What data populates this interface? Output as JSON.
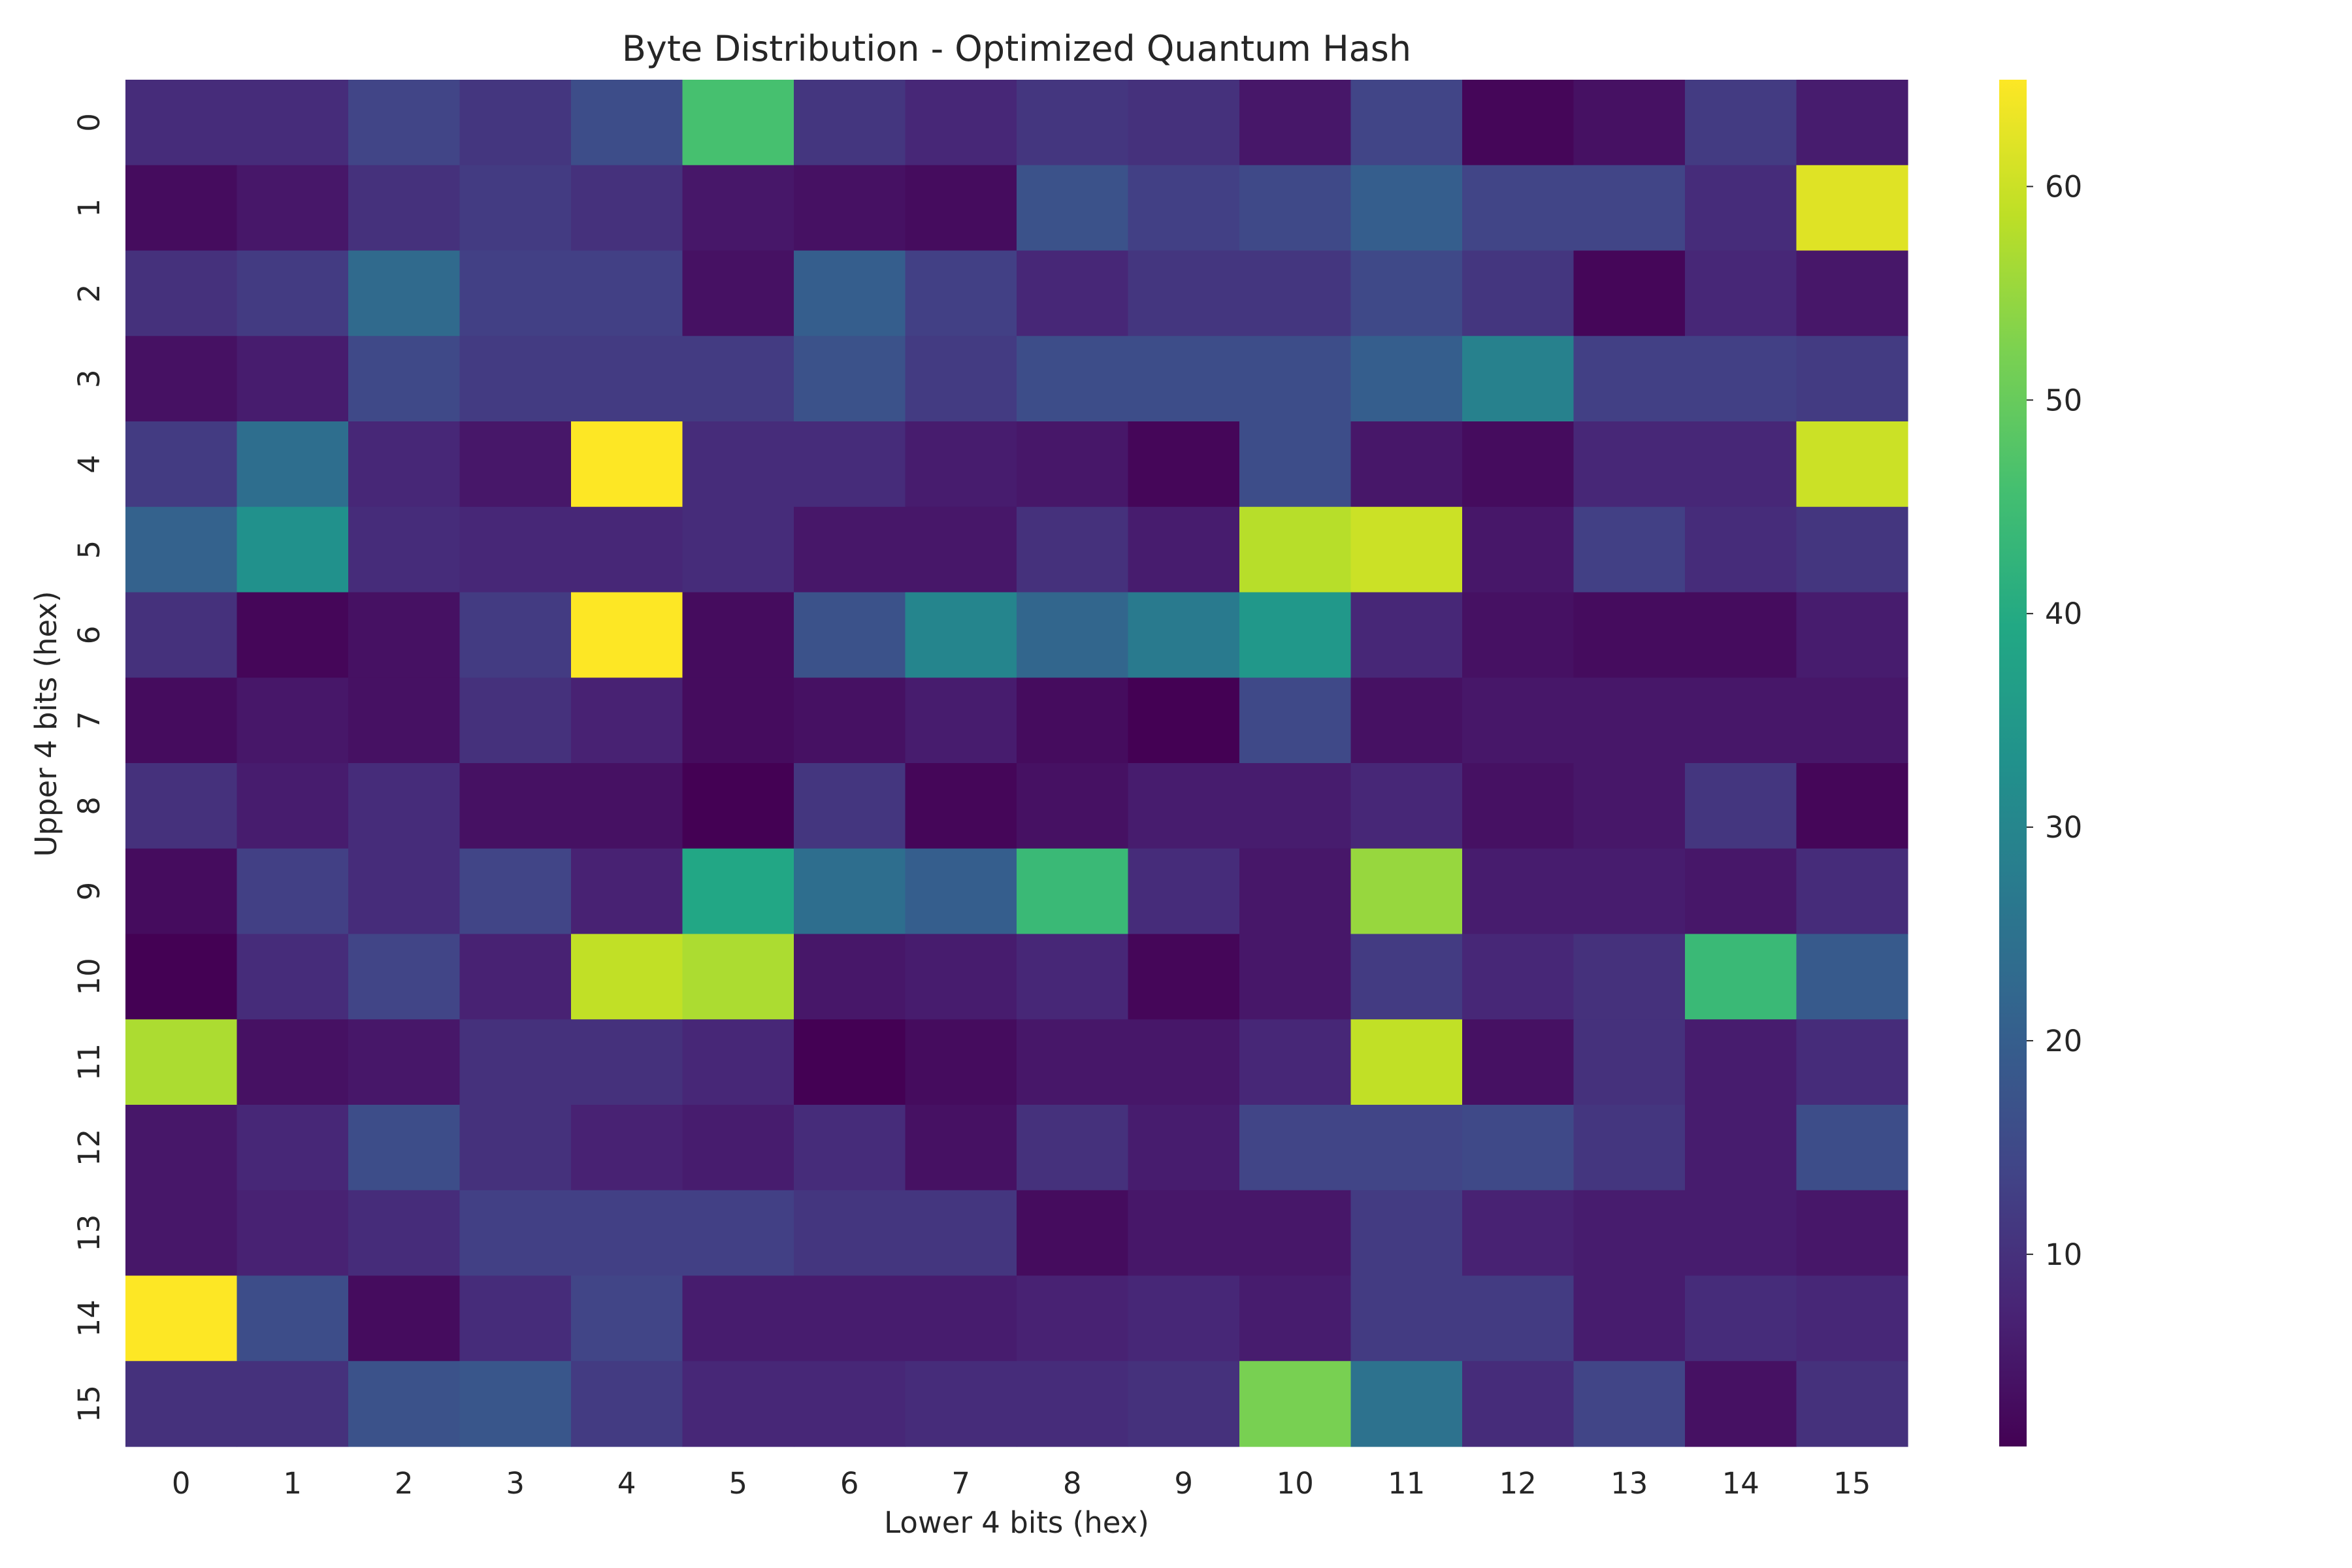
{
  "chart_data": {
    "type": "heatmap",
    "title": "Byte Distribution - Optimized Quantum Hash",
    "xlabel": "Lower 4 bits (hex)",
    "ylabel": "Upper 4 bits (hex)",
    "x_categories": [
      "0",
      "1",
      "2",
      "3",
      "4",
      "5",
      "6",
      "7",
      "8",
      "9",
      "10",
      "11",
      "12",
      "13",
      "14",
      "15"
    ],
    "y_categories": [
      "0",
      "1",
      "2",
      "3",
      "4",
      "5",
      "6",
      "7",
      "8",
      "9",
      "10",
      "11",
      "12",
      "13",
      "14",
      "15"
    ],
    "colormap": "viridis",
    "vmin": 1,
    "vmax": 65,
    "colorbar_ticks": [
      10,
      20,
      30,
      40,
      50,
      60
    ],
    "values": [
      [
        9,
        9,
        14,
        11,
        16,
        46,
        11,
        8,
        11,
        10,
        5,
        14,
        2,
        4,
        12,
        6
      ],
      [
        3,
        5,
        10,
        12,
        10,
        5,
        4,
        3,
        17,
        13,
        15,
        20,
        14,
        14,
        9,
        62
      ],
      [
        10,
        12,
        23,
        13,
        13,
        4,
        20,
        13,
        8,
        11,
        11,
        15,
        11,
        2,
        8,
        5
      ],
      [
        4,
        6,
        15,
        12,
        12,
        12,
        17,
        12,
        16,
        16,
        16,
        20,
        29,
        13,
        13,
        12
      ],
      [
        12,
        24,
        8,
        5,
        65,
        9,
        9,
        6,
        5,
        2,
        16,
        5,
        3,
        8,
        8,
        60
      ],
      [
        21,
        33,
        9,
        8,
        8,
        9,
        5,
        5,
        10,
        6,
        58,
        60,
        5,
        13,
        9,
        11
      ],
      [
        10,
        2,
        4,
        12,
        65,
        3,
        17,
        30,
        22,
        27,
        35,
        8,
        4,
        3,
        3,
        6
      ],
      [
        3,
        5,
        4,
        10,
        7,
        3,
        4,
        6,
        3,
        1,
        15,
        4,
        5,
        5,
        5,
        5
      ],
      [
        10,
        6,
        9,
        4,
        4,
        1,
        11,
        2,
        4,
        6,
        6,
        8,
        4,
        5,
        11,
        2
      ],
      [
        3,
        13,
        9,
        14,
        7,
        39,
        24,
        20,
        44,
        9,
        5,
        55,
        6,
        6,
        5,
        9
      ],
      [
        1,
        9,
        14,
        7,
        59,
        57,
        5,
        6,
        8,
        2,
        5,
        12,
        8,
        10,
        44,
        19
      ],
      [
        57,
        4,
        5,
        10,
        10,
        8,
        1,
        3,
        5,
        5,
        8,
        59,
        4,
        10,
        6,
        9
      ],
      [
        5,
        8,
        16,
        10,
        7,
        6,
        9,
        4,
        10,
        6,
        14,
        14,
        15,
        11,
        6,
        16
      ],
      [
        5,
        7,
        9,
        13,
        13,
        13,
        11,
        11,
        3,
        5,
        5,
        12,
        7,
        6,
        6,
        5
      ],
      [
        65,
        16,
        3,
        9,
        14,
        6,
        6,
        6,
        7,
        8,
        6,
        12,
        12,
        6,
        9,
        8
      ],
      [
        10,
        10,
        17,
        18,
        12,
        8,
        8,
        9,
        9,
        10,
        52,
        25,
        9,
        14,
        4,
        10
      ]
    ]
  }
}
